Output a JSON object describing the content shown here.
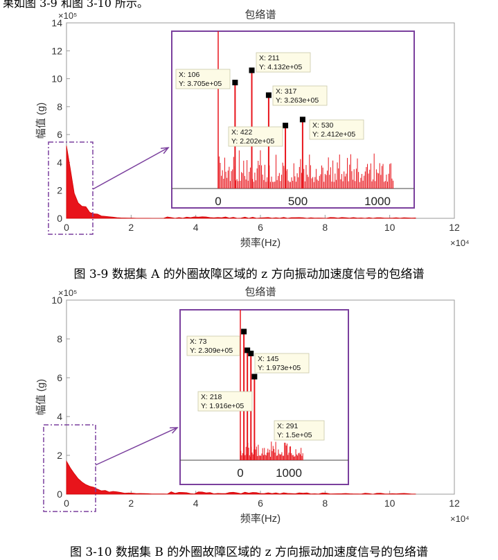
{
  "top_fragment": "果如图 3-9 和图 3-10 所示。",
  "figures": [
    {
      "caption": "图 3-9  数据集 A 的外圈故障区域的 z 方向振动加速度信号的包络谱",
      "title": "包络谱",
      "ylabel": "幅值 (g)",
      "xlabel": "频率(Hz)",
      "y_exponent": "×10⁵",
      "x_exponent": "×10⁴",
      "x_ticks": [
        "0",
        "2",
        "4",
        "6",
        "8",
        "10",
        "12"
      ],
      "y_ticks": [
        "0",
        "2",
        "4",
        "6",
        "8",
        "10",
        "12",
        "14"
      ],
      "inset_x_ticks": [
        "0",
        "500",
        "1000"
      ],
      "annotations": [
        {
          "x_label": "X: 106",
          "y_label": "Y: 3.705e+05"
        },
        {
          "x_label": "X: 211",
          "y_label": "Y: 4.132e+05"
        },
        {
          "x_label": "X: 317",
          "y_label": "Y: 3.263e+05"
        },
        {
          "x_label": "X: 422",
          "y_label": "Y: 2.202e+05"
        },
        {
          "x_label": "X: 530",
          "y_label": "Y: 2.412e+05"
        }
      ]
    },
    {
      "caption": "图 3-10  数据集 B 的外圈故障区域的 z 方向振动加速度信号的包络谱",
      "title": "包络谱",
      "ylabel": "幅值 (g)",
      "xlabel": "频率(Hz)",
      "y_exponent": "×10⁵",
      "x_exponent": "×10⁴",
      "x_ticks": [
        "0",
        "2",
        "4",
        "6",
        "8",
        "10",
        "12"
      ],
      "y_ticks": [
        "0",
        "2",
        "4",
        "6",
        "8",
        "10"
      ],
      "inset_x_ticks": [
        "0",
        "1000"
      ],
      "annotations": [
        {
          "x_label": "X: 73",
          "y_label": "Y: 2.309e+05"
        },
        {
          "x_label": "X: 145",
          "y_label": "Y: 1.973e+05"
        },
        {
          "x_label": "X: 218",
          "y_label": "Y: 1.916e+05"
        },
        {
          "x_label": "X: 291",
          "y_label": "Y: 1.5e+05"
        }
      ]
    }
  ],
  "chart_data": [
    {
      "type": "line",
      "title": "包络谱",
      "xlabel": "频率(Hz)",
      "ylabel": "幅值 (g)",
      "x_scale": "×10⁴",
      "y_scale": "×10⁵",
      "xlim": [
        0,
        12
      ],
      "ylim": [
        0,
        14
      ],
      "grid": false,
      "inset": {
        "xlim": [
          0,
          1100
        ],
        "points": [
          {
            "x": 106,
            "y": 370500
          },
          {
            "x": 211,
            "y": 413200
          },
          {
            "x": 317,
            "y": 326300
          },
          {
            "x": 422,
            "y": 220200
          },
          {
            "x": 530,
            "y": 241200
          }
        ]
      }
    },
    {
      "type": "line",
      "title": "包络谱",
      "xlabel": "频率(Hz)",
      "ylabel": "幅值 (g)",
      "x_scale": "×10⁴",
      "y_scale": "×10⁵",
      "xlim": [
        0,
        12
      ],
      "ylim": [
        0,
        10
      ],
      "grid": false,
      "inset": {
        "xlim": [
          0,
          1300
        ],
        "points": [
          {
            "x": 73,
            "y": 230900
          },
          {
            "x": 145,
            "y": 197300
          },
          {
            "x": 218,
            "y": 191600
          },
          {
            "x": 291,
            "y": 150000
          }
        ]
      }
    }
  ]
}
